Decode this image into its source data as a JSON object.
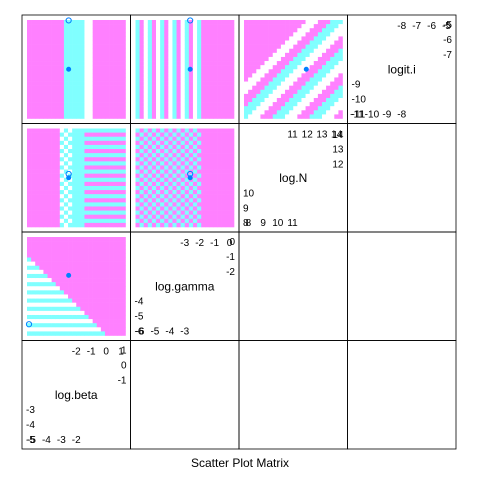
{
  "chart_data": {
    "type": "scatter-matrix",
    "caption": "Scatter Plot Matrix",
    "variables": [
      {
        "name": "log.beta",
        "ticks": [
          -5,
          -4,
          -3,
          -2,
          -1,
          0,
          1
        ],
        "range": [
          -5.3,
          1.3
        ]
      },
      {
        "name": "log.gamma",
        "ticks": [
          -6,
          -5,
          -4,
          -3,
          -2,
          -1,
          0
        ],
        "range": [
          -6.3,
          0.3
        ]
      },
      {
        "name": "log.N",
        "ticks": [
          8,
          9,
          10,
          11,
          12,
          13,
          14
        ],
        "range": [
          7.7,
          14.4
        ]
      },
      {
        "name": "logit.i",
        "ticks": [
          -11,
          -10,
          -9,
          -8,
          -7,
          -6,
          -5
        ],
        "range": [
          -11.3,
          -4.7
        ]
      }
    ],
    "diag_labels": {
      "log.beta": {
        "low": [
          -5,
          -4,
          -3,
          -2
        ],
        "high": [
          -2,
          -1,
          0,
          1
        ]
      },
      "log.gamma": {
        "low": [
          -6,
          -5,
          -4,
          -3
        ],
        "high": [
          -3,
          -2,
          -1,
          0
        ]
      },
      "log.N": {
        "low": [
          8,
          9,
          10,
          11
        ],
        "high": [
          11,
          12,
          13,
          14
        ]
      },
      "logit.i": {
        "low": [
          -11,
          -10,
          -9,
          -8
        ],
        "high": [
          -8,
          -7,
          -6,
          -5
        ]
      }
    },
    "heatmap_colors": [
      "#ff80ff",
      "#80ffff",
      "#ffffff"
    ],
    "point_colors": {
      "filled": "#0080ff",
      "open": "#0080ff"
    },
    "panels": [
      {
        "row": 0,
        "col": 0,
        "points": [
          {
            "x": 11.0,
            "y": -5.0,
            "open": true
          },
          {
            "x": 11.0,
            "y": -8.0,
            "open": false
          }
        ]
      },
      {
        "row": 0,
        "col": 1,
        "points": [
          {
            "x": -2.0,
            "y": -8.0,
            "open": false
          },
          {
            "x": -2.0,
            "y": -11.0,
            "open": true
          }
        ]
      },
      {
        "row": 0,
        "col": 2,
        "points": [
          {
            "x": 11.5,
            "y": -8.0,
            "open": false
          }
        ]
      },
      {
        "row": 1,
        "col": 0,
        "points": [
          {
            "x": 11.0,
            "y": 11.0,
            "open": false
          },
          {
            "x": 11.0,
            "y": 10.6,
            "open": true
          }
        ]
      },
      {
        "row": 1,
        "col": 1,
        "points": [
          {
            "x": -2.0,
            "y": 11.0,
            "open": false
          },
          {
            "x": -2.0,
            "y": 10.6,
            "open": true
          }
        ]
      },
      {
        "row": 2,
        "col": 0,
        "points": [
          {
            "x": 11.0,
            "y": -2.0,
            "open": false
          },
          {
            "x": 8.0,
            "y": -6.0,
            "open": true
          }
        ]
      }
    ]
  }
}
